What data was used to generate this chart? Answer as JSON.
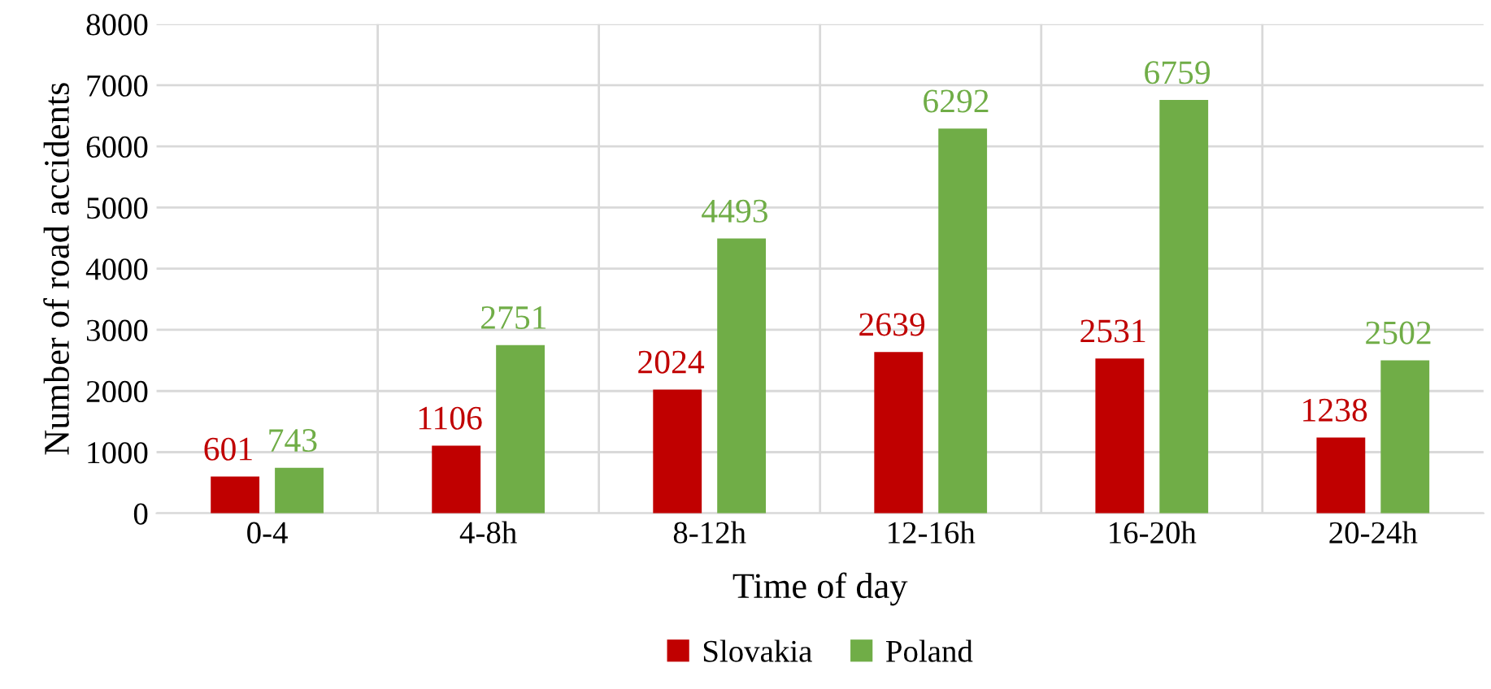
{
  "chart_data": {
    "type": "bar",
    "xlabel": "Time of day",
    "ylabel": "Number of road accidents",
    "categories": [
      "0-4",
      "4-8h",
      "8-12h",
      "12-16h",
      "16-20h",
      "20-24h"
    ],
    "series": [
      {
        "name": "Slovakia",
        "color": "#c00000",
        "values": [
          601,
          1106,
          2024,
          2639,
          2531,
          1238
        ]
      },
      {
        "name": "Poland",
        "color": "#70ad47",
        "values": [
          743,
          2751,
          4493,
          6292,
          6759,
          2502
        ]
      }
    ],
    "ylim": [
      0,
      8000
    ],
    "yticks": [
      0,
      1000,
      2000,
      3000,
      4000,
      5000,
      6000,
      7000,
      8000
    ],
    "grid": true,
    "legend": "bottom",
    "data_labels": true
  }
}
